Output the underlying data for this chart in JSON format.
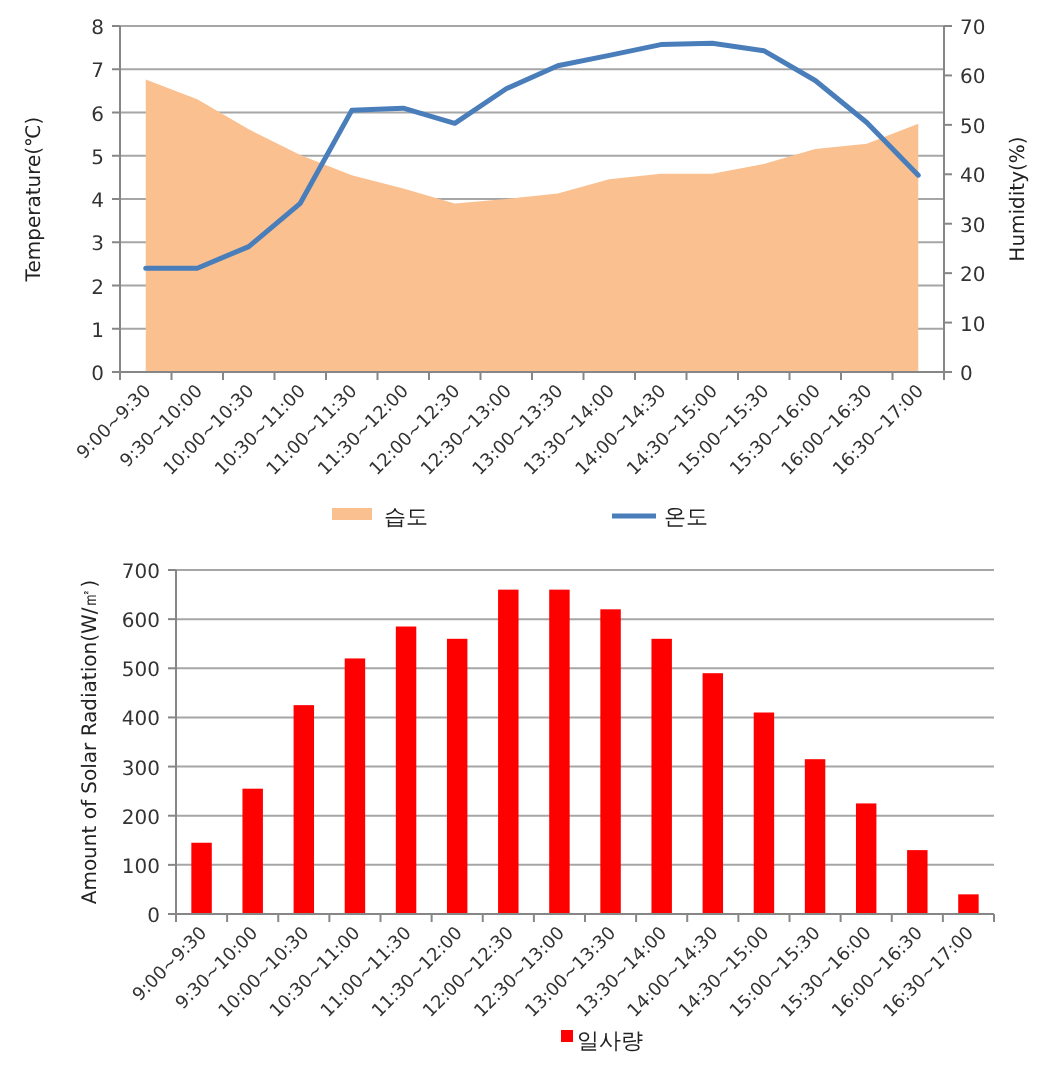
{
  "chart_data": [
    {
      "type": "line",
      "categories": [
        "9:00~9:30",
        "9:30~10:00",
        "10:00~10:30",
        "10:30~11:00",
        "11:00~11:30",
        "11:30~12:00",
        "12:00~12:30",
        "12:30~13:00",
        "13:00~13:30",
        "13:30~14:00",
        "14:00~14:30",
        "14:30~15:00",
        "15:00~15:30",
        "15:30~16:00",
        "16:00~16:30",
        "16:30~17:00"
      ],
      "series": [
        {
          "name": "습도",
          "type": "area",
          "axis": "y2",
          "color": "#fac090",
          "values": [
            59.2,
            55.2,
            49.1,
            43.9,
            39.8,
            37.1,
            34.1,
            35,
            36.1,
            39,
            40.1,
            40.1,
            42.1,
            45.1,
            46.2,
            50.2
          ]
        },
        {
          "name": "온도",
          "type": "line",
          "color": "#4a7ebb",
          "values": [
            2.4,
            2.4,
            2.9,
            3.9,
            6.05,
            6.1,
            5.75,
            6.55,
            7.08,
            7.32,
            7.57,
            7.6,
            7.43,
            6.74,
            5.77,
            4.55
          ]
        }
      ],
      "ylabel": "Temperature(℃)",
      "y2label": "Humidity(%)",
      "ylim": [
        0,
        8
      ],
      "yticks": [
        0,
        1,
        2,
        3,
        4,
        5,
        6,
        7,
        8
      ],
      "y2lim": [
        0,
        70
      ],
      "y2ticks": [
        0,
        10,
        20,
        30,
        40,
        50,
        60,
        70
      ],
      "grid": "y",
      "legend": "bottom"
    },
    {
      "type": "bar",
      "categories": [
        "9:00~9:30",
        "9:30~10:00",
        "10:00~10:30",
        "10:30~11:00",
        "11:00~11:30",
        "11:30~12:00",
        "12:00~12:30",
        "12:30~13:00",
        "13:00~13:30",
        "13:30~14:00",
        "14:00~14:30",
        "14:30~15:00",
        "15:00~15:30",
        "15:30~16:00",
        "16:00~16:30",
        "16:30~17:00"
      ],
      "series": [
        {
          "name": "일사량",
          "color": "#ff0000",
          "values": [
            145,
            255,
            425,
            520,
            585,
            560,
            660,
            660,
            620,
            560,
            490,
            410,
            315,
            225,
            130,
            40
          ]
        }
      ],
      "ylabel": "Amount of Solar Radiation(W/㎡)",
      "ylim": [
        0,
        700
      ],
      "yticks": [
        0,
        100,
        200,
        300,
        400,
        500,
        600,
        700
      ],
      "grid": "y",
      "legend": "bottom"
    }
  ]
}
